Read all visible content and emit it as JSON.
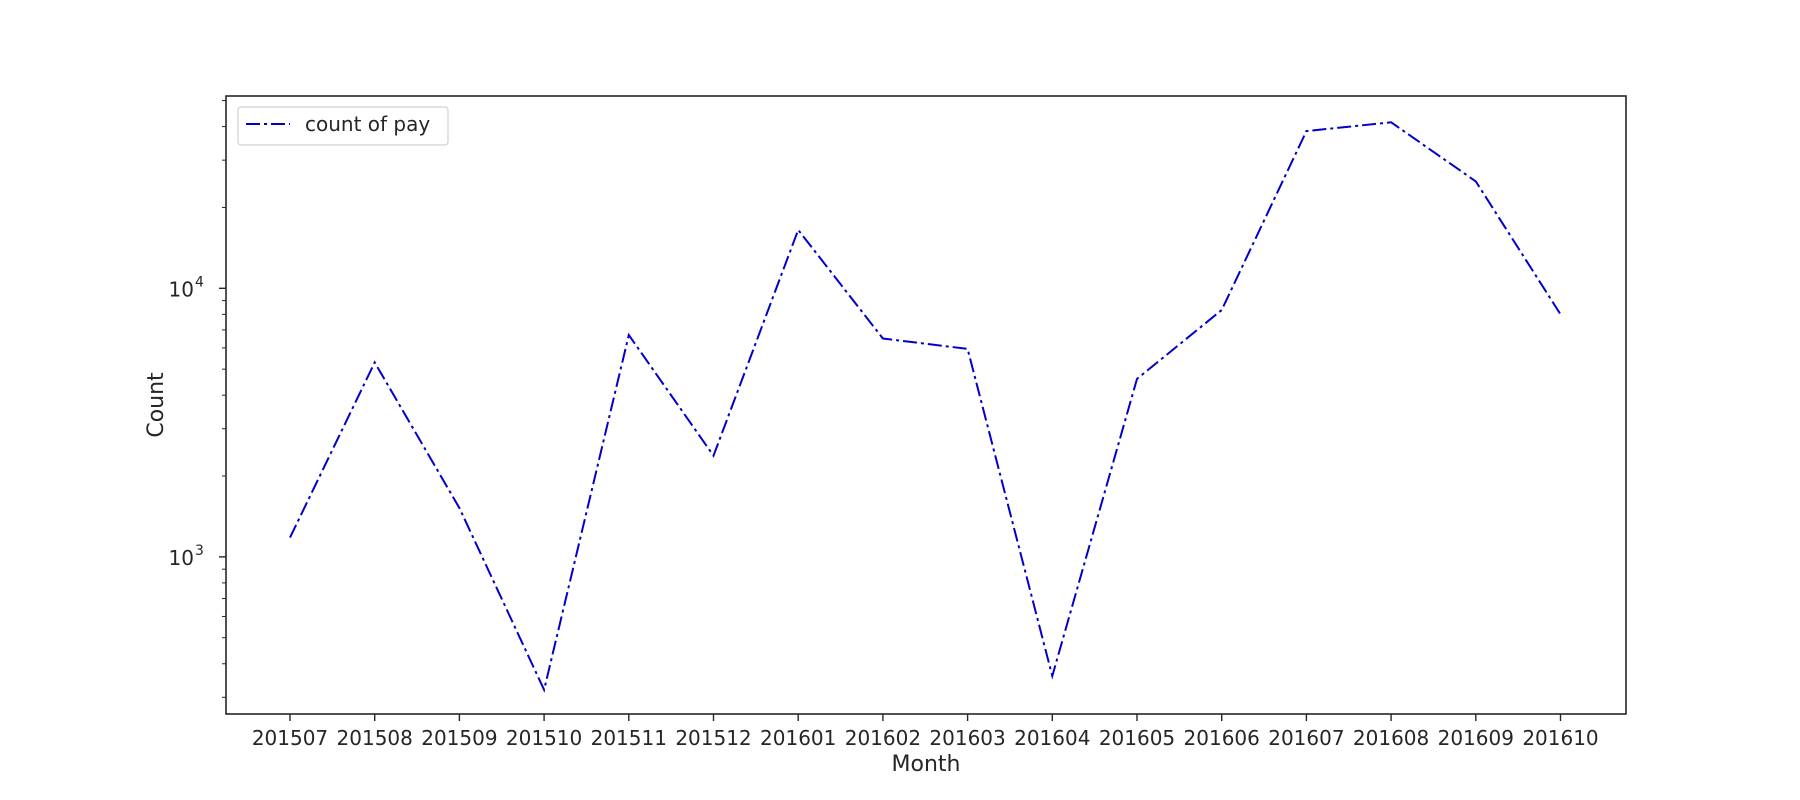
{
  "chart_data": {
    "type": "line",
    "title": "",
    "xlabel": "Month",
    "ylabel": "Count",
    "y_scale": "log",
    "ylim": [
      260,
      52000
    ],
    "y_major_ticks": [
      {
        "value": 1000,
        "base": "10",
        "exp": "3"
      },
      {
        "value": 10000,
        "base": "10",
        "exp": "4"
      }
    ],
    "grid": false,
    "legend_position": "top-left",
    "categories": [
      "201507",
      "201508",
      "201509",
      "201510",
      "201511",
      "201512",
      "201601",
      "201602",
      "201603",
      "201604",
      "201605",
      "201606",
      "201607",
      "201608",
      "201609",
      "201610"
    ],
    "series": [
      {
        "name": "count of pay",
        "color": "#0000cc",
        "line_style": "dashdot",
        "values": [
          1180,
          5300,
          1520,
          320,
          6700,
          2380,
          16500,
          6500,
          5950,
          360,
          4600,
          8300,
          38500,
          41500,
          25000,
          8000
        ]
      }
    ]
  }
}
